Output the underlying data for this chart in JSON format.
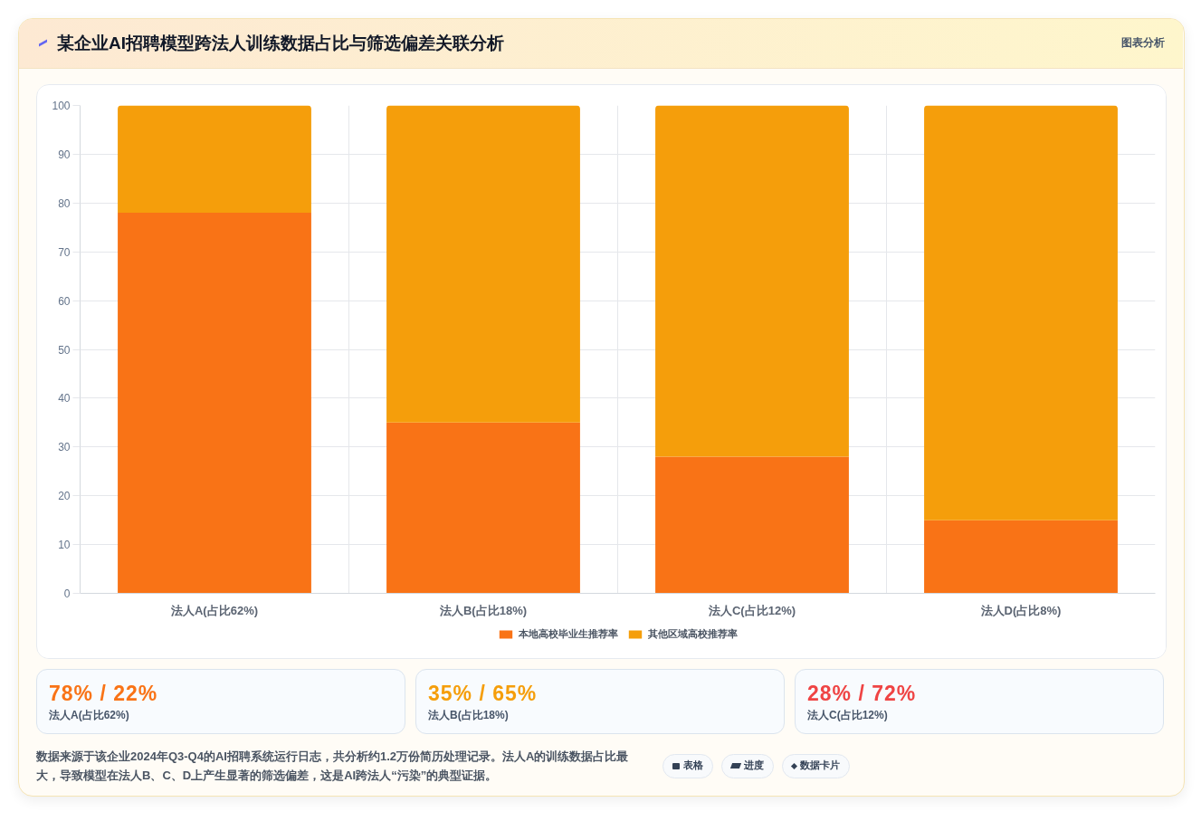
{
  "chart_data": [
    {
      "type": "bar",
      "title": "某企业AI招聘模型跨法人训练数据占比与筛选偏差关联分析",
      "categories": [
        "法人A(占比62%)",
        "法人B(占比18%)",
        "法人C(占比12%)",
        "法人D(占比8%)"
      ],
      "stacked": true,
      "series": [
        {
          "name": "本地高校毕业生推荐率",
          "color": "#f97316",
          "values": [
            78,
            35,
            28,
            15
          ]
        },
        {
          "name": "其他区域高校推荐率",
          "color": "#f59e0b",
          "values": [
            22,
            65,
            72,
            85
          ]
        }
      ],
      "ylim": [
        0,
        100
      ],
      "yticks": [
        0,
        10,
        20,
        30,
        40,
        50,
        60,
        70,
        80,
        90,
        100
      ],
      "grid": true,
      "legend": "bottom",
      "annotations": [
        "图表分析",
        "数据来源于该企业2024年Q3-Q4的AI招聘系统运行日志，共分析约1.2万份简历处理记录。法人A的训练数据占比最大，导致模型在法人B、C、D上产生显著的筛选偏差，这是AI跨法人“污染”的典型证据。",
        "表格",
        "进度",
        "数据卡片"
      ]
    },
    {
      "type": "other",
      "annotations": [
        "78% / 22%",
        "法人A(占比62%)",
        "35% / 65%",
        "法人B(占比18%)",
        "28% / 72%",
        "法人C(占比12%)"
      ]
    }
  ]
}
